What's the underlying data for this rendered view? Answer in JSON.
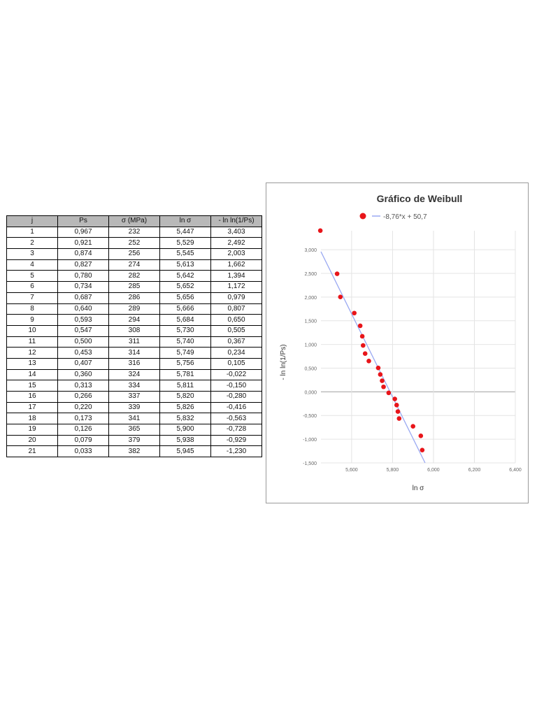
{
  "table": {
    "headers": [
      "j",
      "Ps",
      "σ (MPa)",
      "ln σ",
      "- ln ln(1/Ps)"
    ],
    "rows": [
      [
        "1",
        "0,967",
        "232",
        "5,447",
        "3,403"
      ],
      [
        "2",
        "0,921",
        "252",
        "5,529",
        "2,492"
      ],
      [
        "3",
        "0,874",
        "256",
        "5,545",
        "2,003"
      ],
      [
        "4",
        "0,827",
        "274",
        "5,613",
        "1,662"
      ],
      [
        "5",
        "0,780",
        "282",
        "5,642",
        "1,394"
      ],
      [
        "6",
        "0,734",
        "285",
        "5,652",
        "1,172"
      ],
      [
        "7",
        "0,687",
        "286",
        "5,656",
        "0,979"
      ],
      [
        "8",
        "0,640",
        "289",
        "5,666",
        "0,807"
      ],
      [
        "9",
        "0,593",
        "294",
        "5,684",
        "0,650"
      ],
      [
        "10",
        "0,547",
        "308",
        "5,730",
        "0,505"
      ],
      [
        "11",
        "0,500",
        "311",
        "5,740",
        "0,367"
      ],
      [
        "12",
        "0,453",
        "314",
        "5,749",
        "0,234"
      ],
      [
        "13",
        "0,407",
        "316",
        "5,756",
        "0,105"
      ],
      [
        "14",
        "0,360",
        "324",
        "5,781",
        "-0,022"
      ],
      [
        "15",
        "0,313",
        "334",
        "5,811",
        "-0,150"
      ],
      [
        "16",
        "0,266",
        "337",
        "5,820",
        "-0,280"
      ],
      [
        "17",
        "0,220",
        "339",
        "5,826",
        "-0,416"
      ],
      [
        "18",
        "0,173",
        "341",
        "5,832",
        "-0,563"
      ],
      [
        "19",
        "0,126",
        "365",
        "5,900",
        "-0,728"
      ],
      [
        "20",
        "0,079",
        "379",
        "5,938",
        "-0,929"
      ],
      [
        "21",
        "0,033",
        "382",
        "5,945",
        "-1,230"
      ]
    ]
  },
  "chart_data": {
    "type": "scatter",
    "title": "Gráfico de Weibull",
    "xlabel": "ln σ",
    "ylabel": "- ln ln(1/Ps)",
    "xlim": [
      5.45,
      6.4
    ],
    "ylim": [
      -1.5,
      3.4
    ],
    "x_ticks": [
      5.6,
      5.8,
      6.0,
      6.2,
      6.4
    ],
    "x_tick_labels": [
      "5,600",
      "5,800",
      "6,000",
      "6,200",
      "6,400"
    ],
    "y_ticks": [
      3.0,
      2.5,
      2.0,
      1.5,
      1.0,
      0.5,
      0.0,
      -0.5,
      -1.0,
      -1.5
    ],
    "y_tick_labels": [
      "3,000",
      "2,500",
      "2,000",
      "1,500",
      "1,000",
      "0,500",
      "0,000",
      "-0,500",
      "-1,000",
      "-1,500"
    ],
    "legend_position": "top",
    "series": [
      {
        "marker_color": "#e8151a",
        "x": [
          5.447,
          5.529,
          5.545,
          5.613,
          5.642,
          5.652,
          5.656,
          5.666,
          5.684,
          5.73,
          5.74,
          5.749,
          5.756,
          5.781,
          5.811,
          5.82,
          5.826,
          5.832,
          5.9,
          5.938,
          5.945
        ],
        "y": [
          3.403,
          2.492,
          2.003,
          1.662,
          1.394,
          1.172,
          0.979,
          0.807,
          0.65,
          0.505,
          0.367,
          0.234,
          0.105,
          -0.022,
          -0.15,
          -0.28,
          -0.416,
          -0.563,
          -0.728,
          -0.929,
          -1.23
        ]
      }
    ],
    "trendline": {
      "label": "-8,76*x + 50,7",
      "slope": -8.76,
      "intercept": 50.7,
      "color": "#9aa9f2"
    },
    "grid": true
  }
}
